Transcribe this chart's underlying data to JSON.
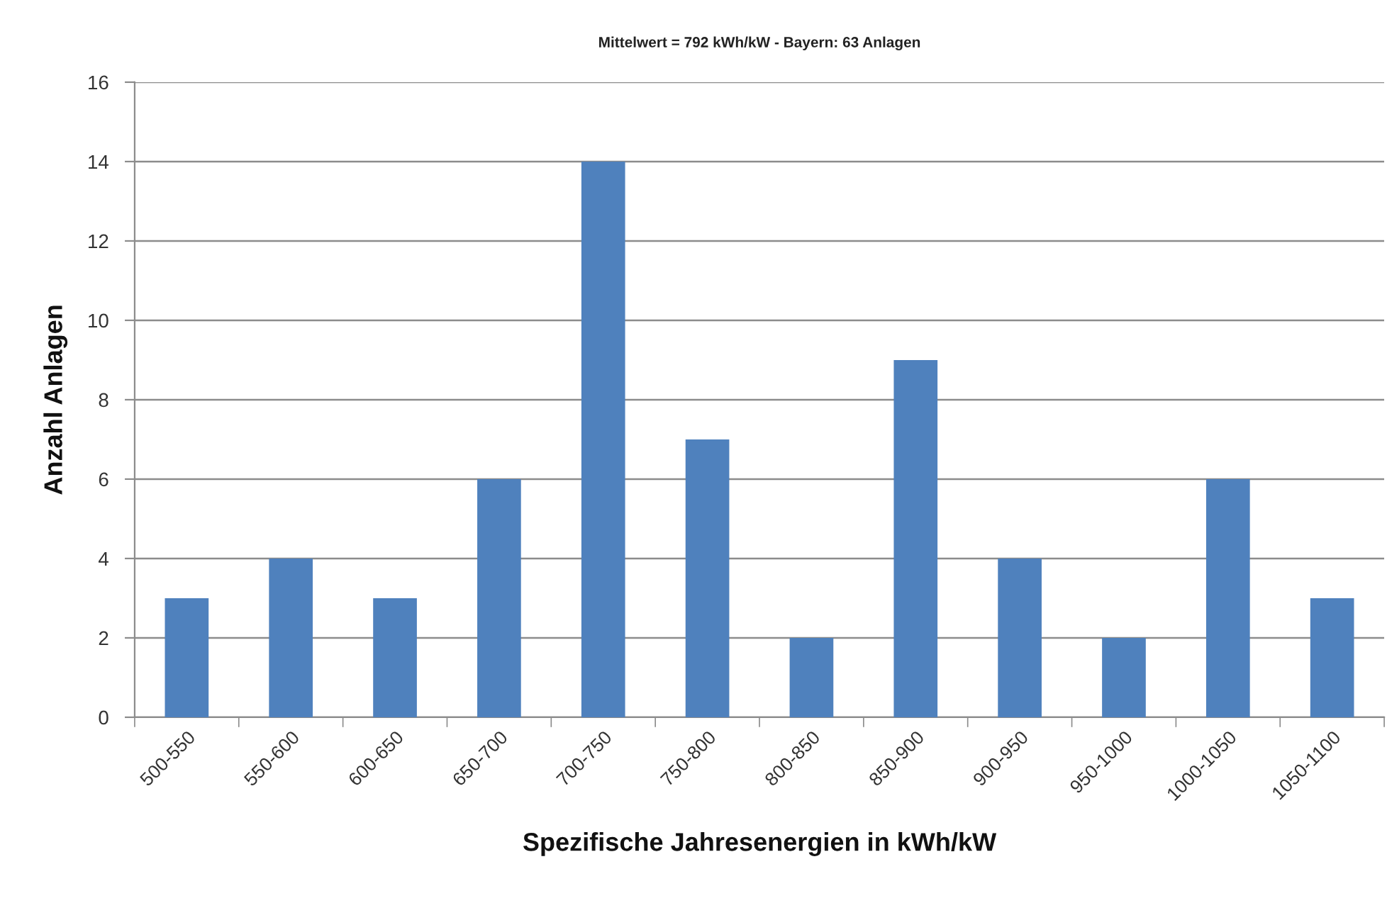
{
  "chart_data": {
    "type": "bar",
    "title": "Mittelwert = 792 kWh/kW - Bayern: 63 Anlagen",
    "xlabel": "Spezifische Jahresenergien in kWh/kW",
    "ylabel": "Anzahl Anlagen",
    "categories": [
      "500-550",
      "550-600",
      "600-650",
      "650-700",
      "700-750",
      "750-800",
      "800-850",
      "850-900",
      "900-950",
      "950-1000",
      "1000-1050",
      "1050-1100"
    ],
    "values": [
      3,
      4,
      3,
      6,
      14,
      7,
      2,
      9,
      4,
      2,
      6,
      3
    ],
    "color": "#4f81bd",
    "ylim": [
      0,
      16
    ],
    "yticks": [
      0,
      2,
      4,
      6,
      8,
      10,
      12,
      14,
      16
    ],
    "grid": "y",
    "legend": false
  }
}
